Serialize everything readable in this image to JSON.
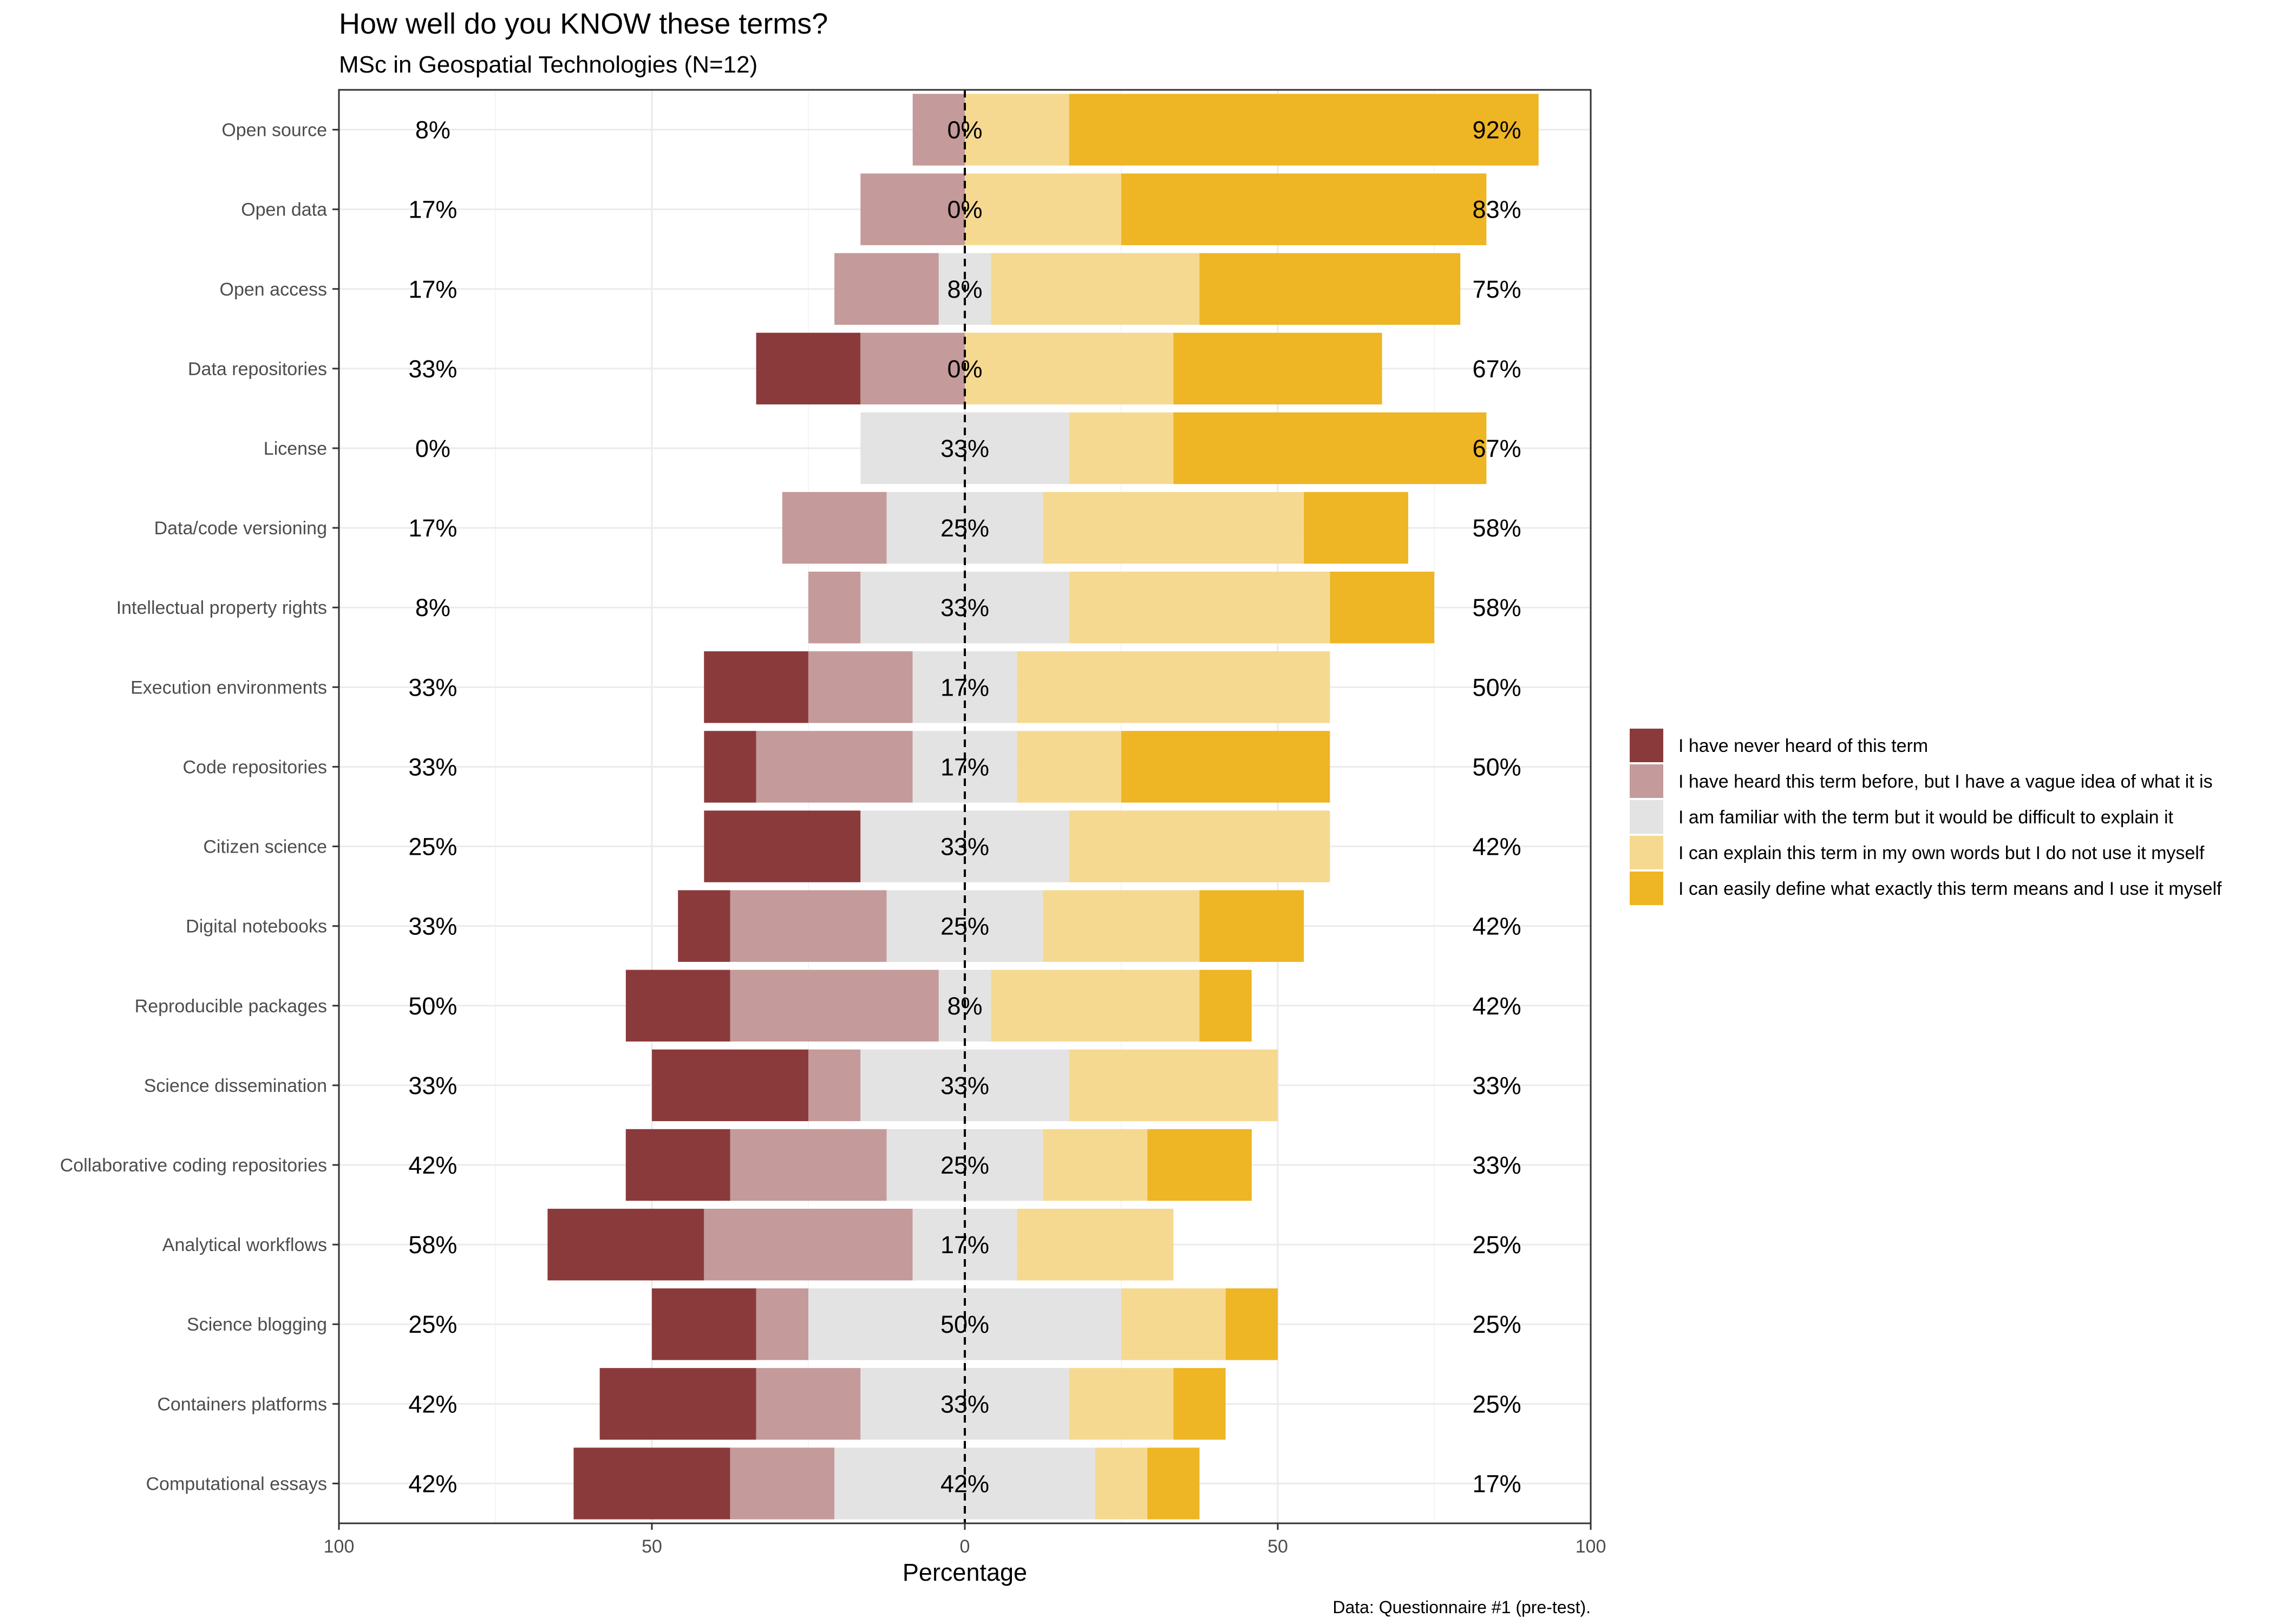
{
  "chart_data": {
    "type": "bar",
    "subtype": "diverging-stacked-likert",
    "title": "How well do you KNOW these terms?",
    "subtitle": "MSc in Geospatial Technologies (N=12)",
    "xlabel": "Percentage",
    "caption": "Data: Questionnaire #1 (pre-test).",
    "xlim": [
      -100,
      100
    ],
    "x_ticks": [
      {
        "value": -100,
        "label": "100"
      },
      {
        "value": -50,
        "label": "50"
      },
      {
        "value": 0,
        "label": "0"
      },
      {
        "value": 50,
        "label": "50"
      },
      {
        "value": 100,
        "label": "100"
      }
    ],
    "grid": true,
    "legend_position": "right",
    "levels": [
      {
        "name": "I have never heard of this term",
        "color": "#8b3a3c"
      },
      {
        "name": "I have heard this term before, but I have a vague idea of what it is",
        "color": "#c49a9a"
      },
      {
        "name": "I am familiar with the term but it would be difficult to explain it",
        "color": "#e3e3e3"
      },
      {
        "name": "I can explain this term in my own words but I do not use it myself",
        "color": "#f5d990"
      },
      {
        "name": "I can easily define what exactly this term means and I use it myself",
        "color": "#eeb524"
      }
    ],
    "rows": [
      {
        "label": "Open source",
        "values": [
          0,
          8.33,
          0,
          16.67,
          75
        ],
        "low": "8%",
        "neutral": "0%",
        "high": "92%"
      },
      {
        "label": "Open data",
        "values": [
          0,
          16.67,
          0,
          25,
          58.33
        ],
        "low": "17%",
        "neutral": "0%",
        "high": "83%"
      },
      {
        "label": "Open access",
        "values": [
          0,
          16.67,
          8.33,
          33.33,
          41.67
        ],
        "low": "17%",
        "neutral": "8%",
        "high": "75%"
      },
      {
        "label": "Data repositories",
        "values": [
          16.67,
          16.67,
          0,
          33.33,
          33.33
        ],
        "low": "33%",
        "neutral": "0%",
        "high": "67%"
      },
      {
        "label": "License",
        "values": [
          0,
          0,
          33.33,
          16.67,
          50
        ],
        "low": "0%",
        "neutral": "33%",
        "high": "67%"
      },
      {
        "label": "Data/code versioning",
        "values": [
          0,
          16.67,
          25,
          41.67,
          16.67
        ],
        "low": "17%",
        "neutral": "25%",
        "high": "58%"
      },
      {
        "label": "Intellectual property rights",
        "values": [
          0,
          8.33,
          33.33,
          41.67,
          16.67
        ],
        "low": "8%",
        "neutral": "33%",
        "high": "58%"
      },
      {
        "label": "Execution environments",
        "values": [
          16.67,
          16.67,
          16.67,
          50,
          0
        ],
        "low": "33%",
        "neutral": "17%",
        "high": "50%"
      },
      {
        "label": "Code repositories",
        "values": [
          8.33,
          25,
          16.67,
          16.67,
          33.33
        ],
        "low": "33%",
        "neutral": "17%",
        "high": "50%"
      },
      {
        "label": "Citizen science",
        "values": [
          25,
          0,
          33.33,
          41.67,
          0
        ],
        "low": "25%",
        "neutral": "33%",
        "high": "42%"
      },
      {
        "label": "Digital notebooks",
        "values": [
          8.33,
          25,
          25,
          25,
          16.67
        ],
        "low": "33%",
        "neutral": "25%",
        "high": "42%"
      },
      {
        "label": "Reproducible packages",
        "values": [
          16.67,
          33.33,
          8.33,
          33.33,
          8.33
        ],
        "low": "50%",
        "neutral": "8%",
        "high": "42%"
      },
      {
        "label": "Science dissemination",
        "values": [
          25,
          8.33,
          33.33,
          33.33,
          0
        ],
        "low": "33%",
        "neutral": "33%",
        "high": "33%"
      },
      {
        "label": "Collaborative coding repositories",
        "values": [
          16.67,
          25,
          25,
          16.67,
          16.67
        ],
        "low": "42%",
        "neutral": "25%",
        "high": "33%"
      },
      {
        "label": "Analytical workflows",
        "values": [
          25,
          33.33,
          16.67,
          25,
          0
        ],
        "low": "58%",
        "neutral": "17%",
        "high": "25%"
      },
      {
        "label": "Science blogging",
        "values": [
          16.67,
          8.33,
          50,
          16.67,
          8.33
        ],
        "low": "25%",
        "neutral": "50%",
        "high": "25%"
      },
      {
        "label": "Containers platforms",
        "values": [
          25,
          16.67,
          33.33,
          16.67,
          8.33
        ],
        "low": "42%",
        "neutral": "33%",
        "high": "25%"
      },
      {
        "label": "Computational essays",
        "values": [
          25,
          16.67,
          41.67,
          8.33,
          8.33
        ],
        "low": "42%",
        "neutral": "42%",
        "high": "17%"
      }
    ]
  }
}
